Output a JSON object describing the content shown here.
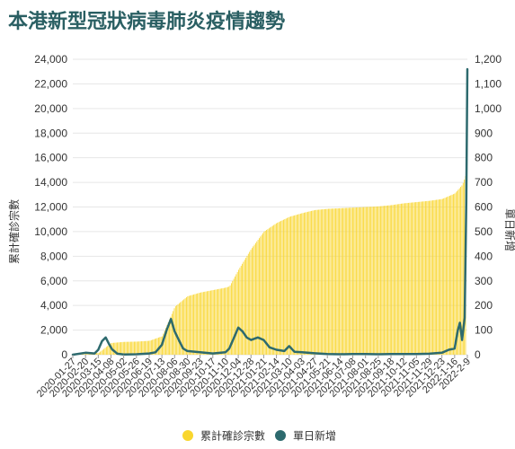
{
  "title": "本港新型冠狀病毒肺炎疫情趨勢",
  "chart_data": {
    "type": "area+line",
    "title": "本港新型冠狀病毒肺炎疫情趨勢",
    "left_axis": {
      "label": "累計確診宗數",
      "range": [
        0,
        24000
      ],
      "ticks": [
        "0",
        "2,000",
        "4,000",
        "6,000",
        "8,000",
        "10,000",
        "12,000",
        "14,000",
        "16,000",
        "18,000",
        "20,000",
        "22,000",
        "24,000"
      ]
    },
    "right_axis": {
      "label": "單日新增",
      "range": [
        0,
        1200
      ],
      "ticks": [
        "0",
        "100",
        "200",
        "300",
        "400",
        "500",
        "600",
        "700",
        "800",
        "900",
        "1,000",
        "1,100",
        "1,200"
      ]
    },
    "x_ticks": [
      "2020-01-27",
      "2020-02-20",
      "2020-03-15",
      "2020-04-08",
      "2020-05-02",
      "2020-05-26",
      "2020-06-19",
      "2020-07-13",
      "2020-08-06",
      "2020-08-30",
      "2020-09-23",
      "2020-10-17",
      "2020-11-10",
      "2020-12-04",
      "2020-12-28",
      "2021-01-21",
      "2021-02-14",
      "2021-03-10",
      "2021-04-03",
      "2021-04-27",
      "2021-05-21",
      "2021-06-14",
      "2021-07-08",
      "2021-08-01",
      "2021-08-25",
      "2021-09-18",
      "2021-10-12",
      "2021-11-05",
      "2021-11-29",
      "2021-12-23",
      "2022-1-16",
      "2022-2-9"
    ],
    "legend": [
      {
        "name": "累計確診宗數",
        "color": "#f9d62e"
      },
      {
        "name": "單日新增",
        "color": "#2d6a6e"
      }
    ],
    "cumulative": [
      [
        "2020-01-27",
        0
      ],
      [
        "2020-03-15",
        140
      ],
      [
        "2020-04-08",
        950
      ],
      [
        "2020-05-02",
        1040
      ],
      [
        "2020-05-26",
        1065
      ],
      [
        "2020-06-19",
        1130
      ],
      [
        "2020-07-13",
        1500
      ],
      [
        "2020-08-06",
        3900
      ],
      [
        "2020-08-30",
        4750
      ],
      [
        "2020-09-23",
        5050
      ],
      [
        "2020-10-17",
        5250
      ],
      [
        "2020-11-10",
        5450
      ],
      [
        "2020-11-17",
        5550
      ],
      [
        "2020-12-04",
        6900
      ],
      [
        "2020-12-28",
        8600
      ],
      [
        "2021-01-21",
        10000
      ],
      [
        "2021-02-14",
        10700
      ],
      [
        "2021-03-10",
        11200
      ],
      [
        "2021-04-03",
        11500
      ],
      [
        "2021-04-27",
        11750
      ],
      [
        "2021-05-21",
        11850
      ],
      [
        "2021-06-14",
        11900
      ],
      [
        "2021-07-08",
        11950
      ],
      [
        "2021-08-01",
        12000
      ],
      [
        "2021-08-25",
        12050
      ],
      [
        "2021-09-18",
        12150
      ],
      [
        "2021-10-12",
        12300
      ],
      [
        "2021-11-05",
        12400
      ],
      [
        "2021-11-29",
        12500
      ],
      [
        "2021-12-23",
        12650
      ],
      [
        "2022-1-16",
        13100
      ],
      [
        "2022-01-30",
        13800
      ],
      [
        "2022-2-9",
        15000
      ]
    ],
    "daily_new": [
      [
        "2020-01-27",
        0
      ],
      [
        "2020-02-20",
        8
      ],
      [
        "2020-03-08",
        5
      ],
      [
        "2020-03-15",
        20
      ],
      [
        "2020-03-22",
        55
      ],
      [
        "2020-03-29",
        70
      ],
      [
        "2020-04-04",
        45
      ],
      [
        "2020-04-10",
        22
      ],
      [
        "2020-04-20",
        4
      ],
      [
        "2020-05-02",
        1
      ],
      [
        "2020-05-26",
        2
      ],
      [
        "2020-06-19",
        5
      ],
      [
        "2020-07-01",
        10
      ],
      [
        "2020-07-13",
        40
      ],
      [
        "2020-07-22",
        100
      ],
      [
        "2020-07-30",
        145
      ],
      [
        "2020-08-06",
        95
      ],
      [
        "2020-08-15",
        55
      ],
      [
        "2020-08-22",
        25
      ],
      [
        "2020-08-30",
        15
      ],
      [
        "2020-09-23",
        10
      ],
      [
        "2020-10-17",
        5
      ],
      [
        "2020-11-10",
        10
      ],
      [
        "2020-11-17",
        25
      ],
      [
        "2020-11-28",
        80
      ],
      [
        "2020-12-04",
        110
      ],
      [
        "2020-12-12",
        95
      ],
      [
        "2020-12-20",
        70
      ],
      [
        "2020-12-28",
        60
      ],
      [
        "2021-01-10",
        70
      ],
      [
        "2021-01-21",
        60
      ],
      [
        "2021-02-01",
        30
      ],
      [
        "2021-02-14",
        20
      ],
      [
        "2021-03-01",
        15
      ],
      [
        "2021-03-10",
        35
      ],
      [
        "2021-03-20",
        12
      ],
      [
        "2021-04-03",
        10
      ],
      [
        "2021-04-27",
        6
      ],
      [
        "2021-05-21",
        3
      ],
      [
        "2021-06-14",
        2
      ],
      [
        "2021-07-08",
        3
      ],
      [
        "2021-08-01",
        3
      ],
      [
        "2021-08-25",
        2
      ],
      [
        "2021-09-18",
        3
      ],
      [
        "2021-10-12",
        3
      ],
      [
        "2021-11-05",
        3
      ],
      [
        "2021-11-29",
        4
      ],
      [
        "2021-12-23",
        8
      ],
      [
        "2022-01-05",
        20
      ],
      [
        "2022-1-16",
        25
      ],
      [
        "2022-01-22",
        100
      ],
      [
        "2022-01-26",
        130
      ],
      [
        "2022-01-30",
        60
      ],
      [
        "2022-02-04",
        150
      ],
      [
        "2022-02-07",
        620
      ],
      [
        "2022-2-9",
        1160
      ]
    ]
  }
}
